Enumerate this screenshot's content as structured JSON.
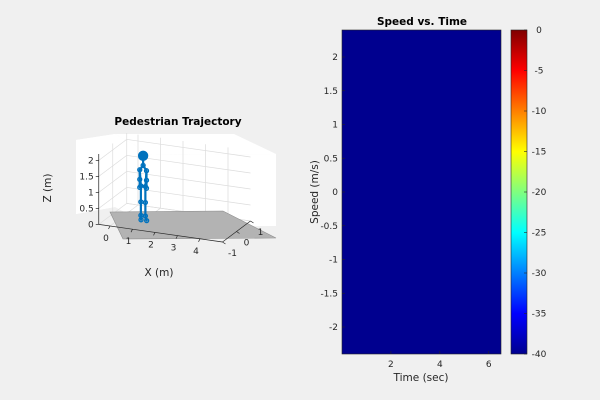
{
  "chart_data": [
    {
      "type": "3d-line",
      "title": "Pedestrian Trajectory",
      "xlabel": "X (m)",
      "ylabel": "",
      "zlabel": "Z (m)",
      "xlim": [
        -0.5,
        5
      ],
      "ylim": [
        -1,
        1
      ],
      "zlim": [
        0,
        2.2
      ],
      "x_ticks": [
        "0",
        "1",
        "2",
        "3",
        "4"
      ],
      "y_ticks": [
        "-1",
        "0",
        "1"
      ],
      "z_ticks": [
        "0",
        "0.5",
        "1",
        "1.5",
        "2"
      ],
      "grid": true,
      "series_color": "#0072bd",
      "skeleton_points": [
        {
          "name": "head",
          "x": 0.85,
          "y": 0,
          "z": 1.95
        },
        {
          "name": "neck",
          "x": 0.85,
          "y": 0,
          "z": 1.65
        },
        {
          "name": "shoulder-left",
          "x": 0.7,
          "y": 0,
          "z": 1.5
        },
        {
          "name": "shoulder-right",
          "x": 1.0,
          "y": 0,
          "z": 1.5
        },
        {
          "name": "elbow-left",
          "x": 0.7,
          "y": 0,
          "z": 1.2
        },
        {
          "name": "elbow-right",
          "x": 1.0,
          "y": 0,
          "z": 1.2
        },
        {
          "name": "hand-left",
          "x": 0.7,
          "y": 0,
          "z": 0.95
        },
        {
          "name": "hand-right",
          "x": 1.0,
          "y": 0,
          "z": 0.95
        },
        {
          "name": "pelvis-left",
          "x": 0.75,
          "y": 0,
          "z": 1.0
        },
        {
          "name": "pelvis-right",
          "x": 0.95,
          "y": 0,
          "z": 1.0
        },
        {
          "name": "knee-left",
          "x": 0.75,
          "y": 0,
          "z": 0.5
        },
        {
          "name": "knee-right",
          "x": 0.95,
          "y": 0,
          "z": 0.5
        },
        {
          "name": "ankle-left",
          "x": 0.75,
          "y": 0,
          "z": 0.08
        },
        {
          "name": "ankle-right",
          "x": 0.95,
          "y": 0,
          "z": 0.08
        },
        {
          "name": "toe-left",
          "x": 0.85,
          "y": -0.15,
          "z": 0.0
        },
        {
          "name": "toe-right",
          "x": 1.1,
          "y": -0.15,
          "z": 0.0
        }
      ],
      "skeleton_edges": [
        [
          "head",
          "neck"
        ],
        [
          "neck",
          "shoulder-left"
        ],
        [
          "neck",
          "shoulder-right"
        ],
        [
          "shoulder-left",
          "elbow-left"
        ],
        [
          "shoulder-right",
          "elbow-right"
        ],
        [
          "elbow-left",
          "hand-left"
        ],
        [
          "elbow-right",
          "hand-right"
        ],
        [
          "shoulder-left",
          "pelvis-left"
        ],
        [
          "shoulder-right",
          "pelvis-right"
        ],
        [
          "pelvis-left",
          "pelvis-right"
        ],
        [
          "pelvis-left",
          "knee-left"
        ],
        [
          "pelvis-right",
          "knee-right"
        ],
        [
          "knee-left",
          "ankle-left"
        ],
        [
          "knee-right",
          "ankle-right"
        ],
        [
          "ankle-left",
          "toe-left"
        ],
        [
          "ankle-right",
          "toe-right"
        ]
      ]
    },
    {
      "type": "heatmap",
      "title": "Speed vs. Time",
      "xlabel": "Time (sec)",
      "ylabel": "Speed (m/s)",
      "xlim": [
        0,
        6.5
      ],
      "ylim": [
        -2.4,
        2.4
      ],
      "x_ticks": [
        2,
        4,
        6
      ],
      "y_ticks": [
        -2,
        -1.5,
        -1,
        -0.5,
        0,
        0.5,
        1,
        1.5,
        2
      ],
      "values": "all cells at -40",
      "fill_value": -40,
      "fill_color": "#00008f",
      "colorbar": {
        "colormap": "jet",
        "range": [
          -40,
          0
        ],
        "ticks": [
          0,
          -5,
          -10,
          -15,
          -20,
          -25,
          -30,
          -35,
          -40
        ]
      }
    }
  ]
}
